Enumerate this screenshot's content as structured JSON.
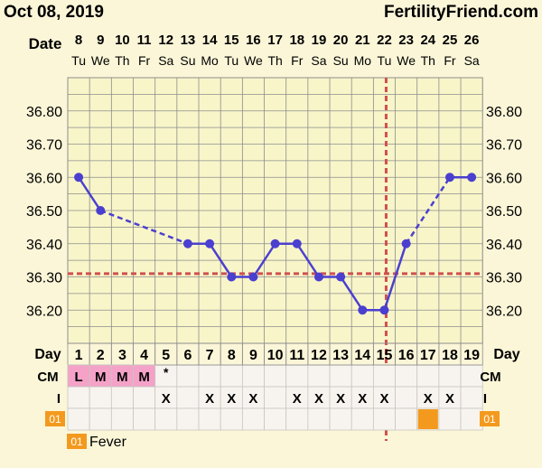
{
  "header": {
    "date": "Oct 08, 2019",
    "site": "FertilityFriend.com"
  },
  "labels": {
    "date_row": "Date",
    "day_row": "Day",
    "cm_row": "CM",
    "i_row": "I",
    "code_box": "01",
    "legend_code": "01",
    "legend_text": "Fever"
  },
  "colors": {
    "background": "#fbf6d8",
    "grid_bg": "#f8f5c9",
    "grid_line": "#8d8d8d",
    "line": "#4b3fcf",
    "coverline": "#d0504e",
    "cm_fill": "#f4a2c8",
    "fever": "#f39a1e",
    "table_cell": "#f7f4f0"
  },
  "chart_data": {
    "type": "line",
    "xlabel": "",
    "ylabel": "",
    "dates": [
      "8",
      "9",
      "10",
      "11",
      "12",
      "13",
      "14",
      "15",
      "16",
      "17",
      "18",
      "19",
      "20",
      "21",
      "22",
      "23",
      "24",
      "25",
      "26"
    ],
    "weekdays": [
      "Tu",
      "We",
      "Th",
      "Fr",
      "Sa",
      "Su",
      "Mo",
      "Tu",
      "We",
      "Th",
      "Fr",
      "Sa",
      "Su",
      "Mo",
      "Tu",
      "We",
      "Th",
      "Fr",
      "Sa"
    ],
    "cycle_days": [
      "1",
      "2",
      "3",
      "4",
      "5",
      "6",
      "7",
      "8",
      "9",
      "10",
      "11",
      "12",
      "13",
      "14",
      "15",
      "16",
      "17",
      "18",
      "19"
    ],
    "ylim": [
      36.1,
      36.9
    ],
    "y_ticks": [
      "36.80",
      "36.70",
      "36.60",
      "36.50",
      "36.40",
      "36.30",
      "36.20"
    ],
    "temps": [
      36.6,
      36.5,
      null,
      null,
      null,
      36.4,
      36.4,
      36.3,
      36.3,
      36.4,
      36.4,
      36.3,
      36.3,
      36.2,
      36.2,
      36.4,
      null,
      36.6,
      36.6
    ],
    "coverline": 36.31,
    "ovulation_day": 15,
    "cm": [
      "L",
      "M",
      "M",
      "M",
      "*",
      "",
      "",
      "",
      "",
      "",
      "",
      "",
      "",
      "",
      "",
      "",
      "",
      "",
      ""
    ],
    "cm_highlight": [
      true,
      true,
      true,
      true,
      false,
      false,
      false,
      false,
      false,
      false,
      false,
      false,
      false,
      false,
      false,
      false,
      false,
      false,
      false
    ],
    "intercourse": [
      "",
      "",
      "",
      "",
      "X",
      "",
      "X",
      "X",
      "X",
      "",
      "X",
      "X",
      "X",
      "X",
      "X",
      "",
      "X",
      "X",
      ""
    ],
    "fever": [
      false,
      false,
      false,
      false,
      false,
      false,
      false,
      false,
      false,
      false,
      false,
      false,
      false,
      false,
      false,
      false,
      true,
      false,
      false
    ]
  }
}
